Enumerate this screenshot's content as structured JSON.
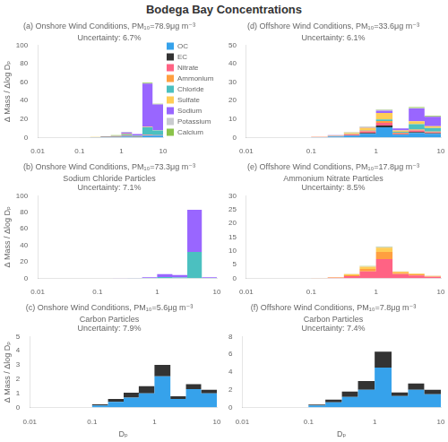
{
  "title": "Bodega Bay Concentrations",
  "chart_data": [
    {
      "type": "bar",
      "stacked": true,
      "log": "x",
      "grid": false,
      "legend": "right",
      "title": "(a) Onshore Wind Conditions, PM₁₀=78.9μg m⁻³",
      "annotations": [
        "Uncertainty: 6.7%"
      ],
      "ylabel": "Δ Mass / Δlog Dₚ",
      "bins": [
        0.01,
        0.056,
        0.1,
        0.18,
        0.32,
        0.56,
        1.0,
        1.8,
        3.2,
        5.6,
        10.0
      ],
      "xlim": [
        0.01,
        10
      ],
      "xticks": [
        0.01,
        0.1,
        1,
        10
      ],
      "ylim": [
        0,
        100
      ],
      "yticks": [
        0,
        20,
        40,
        60,
        80,
        100
      ],
      "series": [
        {
          "name": "OC",
          "color": "#36a2eb",
          "values": [
            0,
            0,
            0.1,
            0.2,
            0.4,
            0.6,
            1.0,
            0.5,
            2.0,
            2.0
          ]
        },
        {
          "name": "EC",
          "color": "#333333",
          "values": [
            0,
            0,
            0.05,
            0.1,
            0.15,
            0.2,
            0.3,
            0.1,
            0.3,
            0.2
          ]
        },
        {
          "name": "Nitrate",
          "color": "#ff6384",
          "values": [
            0,
            0,
            0.05,
            0.1,
            0.2,
            0.3,
            0.5,
            0.2,
            0.5,
            0.3
          ]
        },
        {
          "name": "Ammonium",
          "color": "#ff9f40",
          "values": [
            0,
            0,
            0.02,
            0.05,
            0.1,
            0.15,
            0.3,
            0.1,
            0.2,
            0.1
          ]
        },
        {
          "name": "Chloride",
          "color": "#4bc0c0",
          "values": [
            0,
            0,
            0.02,
            0.05,
            0.15,
            0.4,
            1.2,
            1.0,
            8.0,
            5.0
          ]
        },
        {
          "name": "Sulfate",
          "color": "#ffcd56",
          "values": [
            0,
            0,
            0.05,
            0.1,
            0.2,
            0.4,
            0.8,
            0.3,
            0.5,
            0.3
          ]
        },
        {
          "name": "Sodium",
          "color": "#9966ff",
          "values": [
            0,
            0,
            0.02,
            0.05,
            0.1,
            0.3,
            1.5,
            1.5,
            47.0,
            28.0
          ]
        },
        {
          "name": "Potassium",
          "color": "#c9cbcf",
          "values": [
            0,
            0,
            0.01,
            0.03,
            0.05,
            0.08,
            0.15,
            0.05,
            0.3,
            0.15
          ]
        },
        {
          "name": "Calcium",
          "color": "#8bc34a",
          "values": [
            0,
            0,
            0.01,
            0.02,
            0.05,
            0.1,
            0.2,
            0.1,
            0.7,
            0.5
          ]
        }
      ]
    },
    {
      "type": "bar",
      "stacked": true,
      "log": "x",
      "grid": false,
      "legend": false,
      "title": "(b) Onshore Wind Conditions, PM₁₀=73.3μg m⁻³",
      "annotations": [
        "Sodium Chloride Particles",
        "Uncertainty: 7.1%"
      ],
      "ylabel": "Δ Mass / Δlog Dₚ",
      "bins": [
        0.01,
        0.056,
        0.1,
        0.18,
        0.32,
        0.56,
        1.0,
        1.8,
        3.2,
        5.6,
        10.0
      ],
      "xlim": [
        0.01,
        10
      ],
      "xticks": [
        0.01,
        0.1,
        1,
        10
      ],
      "ylim": [
        0,
        100
      ],
      "yticks": [
        0,
        20,
        40,
        60,
        80,
        100
      ],
      "series": [
        {
          "name": "OC",
          "color": "#36a2eb",
          "values": [
            0,
            0,
            0,
            0,
            0,
            0,
            0,
            0,
            0,
            0
          ]
        },
        {
          "name": "EC",
          "color": "#333333",
          "values": [
            0,
            0,
            0,
            0,
            0,
            0,
            0,
            0,
            0,
            0
          ]
        },
        {
          "name": "Nitrate",
          "color": "#ff6384",
          "values": [
            0,
            0,
            0,
            0,
            0,
            0,
            0,
            0,
            0,
            0
          ]
        },
        {
          "name": "Ammonium",
          "color": "#ff9f40",
          "values": [
            0,
            0,
            0,
            0,
            0,
            0,
            0,
            0,
            0,
            0
          ]
        },
        {
          "name": "Chloride",
          "color": "#4bc0c0",
          "values": [
            0,
            0,
            0,
            0,
            0.05,
            0.3,
            1.5,
            1.0,
            32.0,
            0.5
          ]
        },
        {
          "name": "Sulfate",
          "color": "#ffcd56",
          "values": [
            0,
            0,
            0,
            0,
            0,
            0,
            0,
            0,
            0,
            0
          ]
        },
        {
          "name": "Sodium",
          "color": "#9966ff",
          "values": [
            0,
            0,
            0,
            0.1,
            0.3,
            1.0,
            3.5,
            3.0,
            51.0,
            0.8
          ]
        },
        {
          "name": "Potassium",
          "color": "#c9cbcf",
          "values": [
            0,
            0,
            0,
            0,
            0,
            0,
            0,
            0,
            0,
            0
          ]
        },
        {
          "name": "Calcium",
          "color": "#8bc34a",
          "values": [
            0,
            0,
            0,
            0,
            0,
            0,
            0,
            0,
            0,
            0
          ]
        }
      ]
    },
    {
      "type": "bar",
      "stacked": true,
      "log": "x",
      "grid": false,
      "legend": false,
      "title": "(c) Onshore Wind Conditions, PM₁₀=5.6μg m⁻³",
      "annotations": [
        "Carbon Particles",
        "Uncertainty: 7.9%"
      ],
      "ylabel": "Δ Mass / Δlog Dₚ",
      "xlabel": "Dₚ",
      "bins": [
        0.01,
        0.056,
        0.1,
        0.18,
        0.32,
        0.56,
        1.0,
        1.8,
        3.2,
        5.6,
        10.0
      ],
      "xlim": [
        0.01,
        10
      ],
      "xticks": [
        0.01,
        0.1,
        1,
        10
      ],
      "ylim": [
        0,
        5
      ],
      "yticks": [
        0,
        1,
        2,
        3,
        4,
        5
      ],
      "series": [
        {
          "name": "OC",
          "color": "#36a2eb",
          "values": [
            0,
            0,
            0.15,
            0.4,
            0.7,
            1.0,
            2.2,
            0.6,
            1.3,
            1.0
          ]
        },
        {
          "name": "EC",
          "color": "#333333",
          "values": [
            0,
            0,
            0.08,
            0.2,
            0.35,
            0.5,
            0.8,
            0.2,
            0.35,
            0.25
          ]
        },
        {
          "name": "Nitrate",
          "color": "#ff6384",
          "values": [
            0,
            0,
            0,
            0,
            0,
            0,
            0,
            0,
            0,
            0
          ]
        },
        {
          "name": "Ammonium",
          "color": "#ff9f40",
          "values": [
            0,
            0,
            0,
            0,
            0,
            0,
            0,
            0,
            0,
            0
          ]
        },
        {
          "name": "Chloride",
          "color": "#4bc0c0",
          "values": [
            0,
            0,
            0,
            0,
            0,
            0,
            0,
            0,
            0,
            0
          ]
        },
        {
          "name": "Sulfate",
          "color": "#ffcd56",
          "values": [
            0,
            0,
            0,
            0,
            0,
            0,
            0,
            0,
            0,
            0
          ]
        },
        {
          "name": "Sodium",
          "color": "#9966ff",
          "values": [
            0,
            0,
            0,
            0,
            0,
            0,
            0,
            0,
            0,
            0
          ]
        },
        {
          "name": "Potassium",
          "color": "#c9cbcf",
          "values": [
            0,
            0,
            0,
            0,
            0,
            0,
            0,
            0,
            0,
            0
          ]
        },
        {
          "name": "Calcium",
          "color": "#8bc34a",
          "values": [
            0,
            0,
            0,
            0,
            0,
            0,
            0,
            0,
            0,
            0
          ]
        }
      ]
    },
    {
      "type": "bar",
      "stacked": true,
      "log": "x",
      "grid": false,
      "legend": false,
      "title": "(d) Offshore Wind Conditions, PM₁₀=33.6μg m⁻³",
      "annotations": [
        "Uncertainty: 6.1%"
      ],
      "bins": [
        0.01,
        0.056,
        0.1,
        0.18,
        0.32,
        0.56,
        1.0,
        1.8,
        3.2,
        5.6,
        10.0
      ],
      "xlim": [
        0.01,
        10
      ],
      "xticks": [
        0.01,
        0.1,
        1,
        10
      ],
      "ylim": [
        0,
        50
      ],
      "yticks": [
        0,
        10,
        20,
        30,
        40,
        50
      ],
      "series": [
        {
          "name": "OC",
          "color": "#36a2eb",
          "values": [
            0,
            0,
            0.2,
            0.5,
            1.0,
            2.0,
            5.5,
            1.5,
            2.5,
            2.0
          ]
        },
        {
          "name": "EC",
          "color": "#333333",
          "values": [
            0,
            0,
            0.05,
            0.1,
            0.2,
            0.5,
            1.0,
            0.3,
            0.5,
            0.4
          ]
        },
        {
          "name": "Nitrate",
          "color": "#ff6384",
          "values": [
            0,
            0,
            0.05,
            0.15,
            0.4,
            0.8,
            1.5,
            0.5,
            0.8,
            0.5
          ]
        },
        {
          "name": "Ammonium",
          "color": "#ff9f40",
          "values": [
            0,
            0,
            0.02,
            0.08,
            0.2,
            0.5,
            1.0,
            0.3,
            0.5,
            0.3
          ]
        },
        {
          "name": "Chloride",
          "color": "#4bc0c0",
          "values": [
            0,
            0,
            0.01,
            0.05,
            0.1,
            0.3,
            0.8,
            0.5,
            3.0,
            2.0
          ]
        },
        {
          "name": "Sulfate",
          "color": "#ffcd56",
          "values": [
            0,
            0,
            0.1,
            0.3,
            0.6,
            1.2,
            3.5,
            0.8,
            1.5,
            1.0
          ]
        },
        {
          "name": "Sodium",
          "color": "#9966ff",
          "values": [
            0,
            0,
            0.01,
            0.05,
            0.1,
            0.3,
            1.2,
            1.0,
            7.0,
            5.0
          ]
        },
        {
          "name": "Potassium",
          "color": "#c9cbcf",
          "values": [
            0,
            0,
            0.02,
            0.07,
            0.15,
            0.25,
            0.5,
            0.1,
            0.2,
            0.15
          ]
        },
        {
          "name": "Calcium",
          "color": "#8bc34a",
          "values": [
            0,
            0,
            0.01,
            0.03,
            0.08,
            0.15,
            0.3,
            0.1,
            0.5,
            0.4
          ]
        }
      ]
    },
    {
      "type": "bar",
      "stacked": true,
      "log": "x",
      "grid": false,
      "legend": false,
      "title": "(e) Offshore Wind Conditions, PM₁₀=17.8μg m⁻³",
      "annotations": [
        "Ammonium Nitrate Particles",
        "Uncertainty: 8.5%"
      ],
      "bins": [
        0.01,
        0.056,
        0.1,
        0.18,
        0.32,
        0.56,
        1.0,
        1.8,
        3.2,
        5.6,
        10.0
      ],
      "xlim": [
        0.01,
        10
      ],
      "xticks": [
        0.01,
        0.1,
        1,
        10
      ],
      "ylim": [
        0,
        30
      ],
      "yticks": [
        0,
        5,
        10,
        15,
        20,
        25,
        30
      ],
      "series": [
        {
          "name": "OC",
          "color": "#36a2eb",
          "values": [
            0,
            0,
            0,
            0,
            0,
            0,
            0,
            0,
            0,
            0
          ]
        },
        {
          "name": "EC",
          "color": "#333333",
          "values": [
            0,
            0,
            0,
            0,
            0,
            0,
            0,
            0,
            0,
            0
          ]
        },
        {
          "name": "Nitrate",
          "color": "#ff6384",
          "values": [
            0,
            0,
            0.05,
            0.2,
            0.8,
            2.5,
            7.0,
            1.5,
            1.0,
            0.5
          ]
        },
        {
          "name": "Ammonium",
          "color": "#ff9f40",
          "values": [
            0,
            0,
            0.02,
            0.08,
            0.3,
            0.9,
            2.6,
            0.5,
            0.4,
            0.2
          ]
        },
        {
          "name": "Chloride",
          "color": "#4bc0c0",
          "values": [
            0,
            0,
            0,
            0,
            0,
            0,
            0,
            0,
            0,
            0
          ]
        },
        {
          "name": "Sulfate",
          "color": "#ffcd56",
          "values": [
            0,
            0,
            0.05,
            0.15,
            0.4,
            0.8,
            1.5,
            0.4,
            0.3,
            0.2
          ]
        },
        {
          "name": "Sodium",
          "color": "#9966ff",
          "values": [
            0,
            0,
            0,
            0,
            0,
            0,
            0,
            0,
            0,
            0
          ]
        },
        {
          "name": "Potassium",
          "color": "#c9cbcf",
          "values": [
            0,
            0,
            0.01,
            0.03,
            0.08,
            0.15,
            0.3,
            0.07,
            0.05,
            0.03
          ]
        },
        {
          "name": "Calcium",
          "color": "#8bc34a",
          "values": [
            0,
            0,
            0.01,
            0.02,
            0.04,
            0.07,
            0.12,
            0.03,
            0.02,
            0.01
          ]
        }
      ]
    },
    {
      "type": "bar",
      "stacked": true,
      "log": "x",
      "grid": false,
      "legend": false,
      "title": "(f) Offshore Wind Conditions, PM₁₀=7.8μg m⁻³",
      "annotations": [
        "Carbon Particles",
        "Uncertainty: 7.4%"
      ],
      "xlabel": "Dₚ",
      "bins": [
        0.01,
        0.056,
        0.1,
        0.18,
        0.32,
        0.56,
        1.0,
        1.8,
        3.2,
        5.6,
        10.0
      ],
      "xlim": [
        0.01,
        10
      ],
      "xticks": [
        0.01,
        0.1,
        1,
        10
      ],
      "ylim": [
        0,
        8
      ],
      "yticks": [
        0,
        2,
        4,
        6,
        8
      ],
      "series": [
        {
          "name": "OC",
          "color": "#36a2eb",
          "values": [
            0,
            0,
            0.25,
            0.6,
            1.2,
            2.0,
            4.5,
            1.3,
            2.0,
            1.5
          ]
        },
        {
          "name": "EC",
          "color": "#333333",
          "values": [
            0,
            0,
            0.1,
            0.3,
            0.6,
            1.0,
            1.8,
            0.4,
            0.7,
            0.5
          ]
        },
        {
          "name": "Nitrate",
          "color": "#ff6384",
          "values": [
            0,
            0,
            0,
            0,
            0,
            0,
            0,
            0,
            0,
            0
          ]
        },
        {
          "name": "Ammonium",
          "color": "#ff9f40",
          "values": [
            0,
            0,
            0,
            0,
            0,
            0,
            0,
            0,
            0,
            0
          ]
        },
        {
          "name": "Chloride",
          "color": "#4bc0c0",
          "values": [
            0,
            0,
            0,
            0,
            0,
            0,
            0,
            0,
            0,
            0
          ]
        },
        {
          "name": "Sulfate",
          "color": "#ffcd56",
          "values": [
            0,
            0,
            0,
            0,
            0,
            0,
            0,
            0,
            0,
            0
          ]
        },
        {
          "name": "Sodium",
          "color": "#9966ff",
          "values": [
            0,
            0,
            0,
            0,
            0,
            0,
            0,
            0,
            0,
            0
          ]
        },
        {
          "name": "Potassium",
          "color": "#c9cbcf",
          "values": [
            0,
            0,
            0,
            0,
            0,
            0,
            0,
            0,
            0,
            0
          ]
        },
        {
          "name": "Calcium",
          "color": "#8bc34a",
          "values": [
            0,
            0,
            0,
            0,
            0,
            0,
            0,
            0,
            0,
            0
          ]
        }
      ]
    }
  ]
}
